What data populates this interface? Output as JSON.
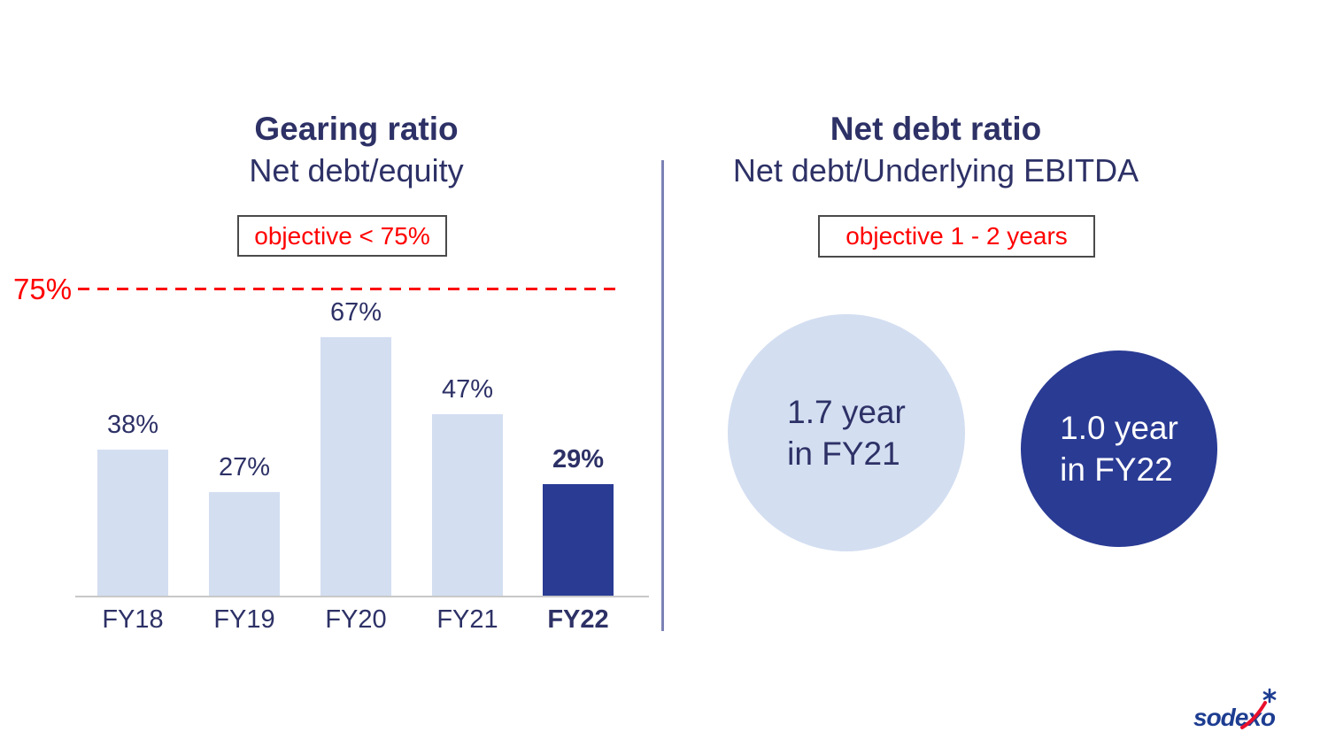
{
  "slide": {
    "left_panel": {
      "title": "Gearing ratio",
      "subtitle": "Net debt/equity",
      "objective_label": "objective < 75%",
      "threshold_label": "75%"
    },
    "right_panel": {
      "title": "Net debt ratio",
      "subtitle": "Net debt/Underlying EBITDA",
      "objective_label": "objective 1 - 2 years"
    },
    "logo_text": "sodexo"
  },
  "colors": {
    "navy_text": "#2d3166",
    "bar_light": "#d3def1",
    "bar_dark": "#2a3b94",
    "accent_red": "#ff0000",
    "divider": "#7b82b5",
    "axis_gray": "#c8c8c8",
    "logo_blue": "#1d3d91",
    "logo_red": "#e8112d"
  },
  "chart_data": [
    {
      "type": "bar",
      "title": "Gearing ratio",
      "subtitle": "Net debt/equity",
      "objective": "objective < 75%",
      "categories": [
        "FY18",
        "FY19",
        "FY20",
        "FY21",
        "FY22"
      ],
      "values": [
        38,
        27,
        67,
        47,
        29
      ],
      "value_labels": [
        "38%",
        "27%",
        "67%",
        "47%",
        "29%"
      ],
      "unit": "percent",
      "highlight_category": "FY22",
      "threshold": {
        "value": 75,
        "label": "75%",
        "style": "dashed-red"
      },
      "ylim": [
        0,
        80
      ],
      "grid": false,
      "colors": {
        "bar_default": "#d3def1",
        "bar_highlight": "#2a3b94"
      }
    },
    {
      "type": "bubble",
      "title": "Net debt ratio",
      "subtitle": "Net debt/Underlying EBITDA",
      "objective": "objective 1 - 2 years",
      "points": [
        {
          "value_years": 1.7,
          "year": "FY21",
          "line1": "1.7 year",
          "line2": "in FY21",
          "fill": "#d3def1",
          "text_color": "#2d3166"
        },
        {
          "value_years": 1.0,
          "year": "FY22",
          "line1": "1.0 year",
          "line2": "in FY22",
          "fill": "#2a3b94",
          "text_color": "#ffffff"
        }
      ]
    }
  ]
}
